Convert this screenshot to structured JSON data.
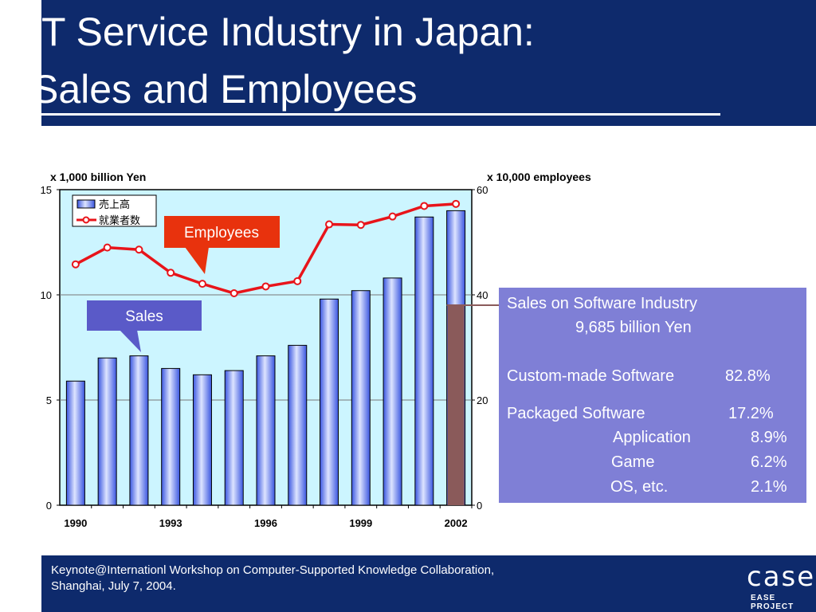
{
  "slide": {
    "title_line_1": "T Service Industry in Japan:",
    "title_line_2": "Sales and Employees",
    "footer_line_1": "Keynote@Internationl Workshop on Computer-Supported Knowledge Collaboration,",
    "footer_line_2": "Shanghai, July 7, 2004.",
    "logo_text": "case",
    "logo_caption": "EASE PROJECT"
  },
  "chart_data": {
    "type": "bar",
    "title": "",
    "x": [
      1990,
      1991,
      1992,
      1993,
      1994,
      1995,
      1996,
      1997,
      1998,
      1999,
      2000,
      2001,
      2002
    ],
    "x_tick_labels": [
      "1990",
      "1993",
      "1996",
      "1999",
      "2002"
    ],
    "left_axis_unit": "x 1,000 billion Yen",
    "right_axis_unit": "x 10,000 employees",
    "left_ylim": [
      0,
      15
    ],
    "left_ticks": [
      0,
      5,
      10,
      15
    ],
    "right_ylim": [
      0,
      60
    ],
    "right_ticks": [
      0,
      20,
      40,
      60
    ],
    "series": [
      {
        "name": "売上高",
        "type": "bar",
        "axis": "left",
        "values": [
          5.9,
          7.0,
          7.1,
          6.5,
          6.2,
          6.4,
          7.1,
          7.6,
          9.8,
          10.2,
          10.8,
          13.7,
          14.0
        ]
      },
      {
        "name": "就業者数",
        "type": "line",
        "axis": "right",
        "values": [
          45.8,
          49.0,
          48.6,
          44.2,
          42.1,
          40.3,
          41.6,
          42.6,
          53.4,
          53.3,
          54.9,
          56.9,
          57.3
        ]
      }
    ],
    "grid": "horizontal",
    "legend_position": "top-left",
    "callouts": [
      {
        "label": "Employees",
        "color": "#e8320d"
      },
      {
        "label": "Sales",
        "color": "#5a5ac8"
      }
    ],
    "colors": {
      "plot_background": "#ccf5ff",
      "bar_fill_light": "#dde4ff",
      "bar_fill_dark": "#3a56e0",
      "line": "#e8141a",
      "highlight_bar": "#8a5a5a"
    }
  },
  "info_box": {
    "line_1": "Sales on Software Industry",
    "line_2": "9,685 billion Yen",
    "custom_label": "Custom-made Software",
    "custom_value": "82.8%",
    "packaged_label": "Packaged Software",
    "packaged_value": "17.2%",
    "application_label": "Application",
    "application_value": "8.9%",
    "game_label": "Game",
    "game_value": "6.2%",
    "os_label": "OS, etc.",
    "os_value": "2.1%"
  }
}
